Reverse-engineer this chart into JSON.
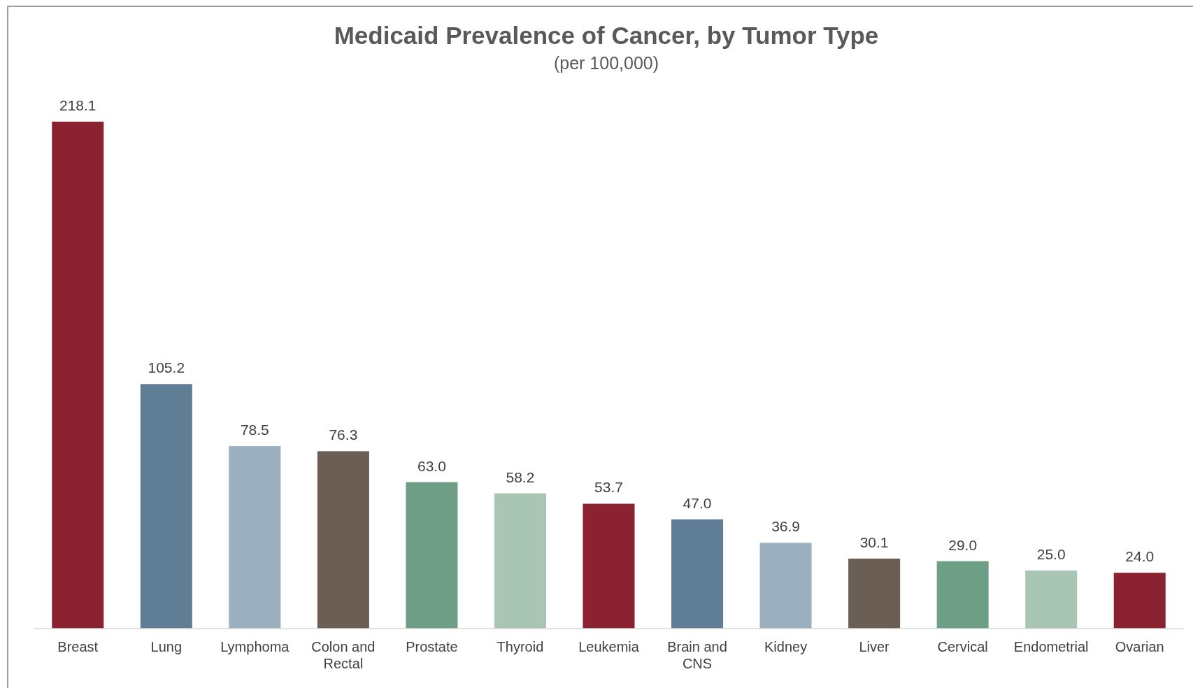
{
  "chart_data": {
    "type": "bar",
    "title": "Medicaid Prevalence of Cancer, by Tumor Type",
    "subtitle": "(per 100,000)",
    "categories": [
      "Breast",
      "Lung",
      "Lymphoma",
      "Colon and Rectal",
      "Prostate",
      "Thyroid",
      "Leukemia",
      "Brain and CNS",
      "Kidney",
      "Liver",
      "Cervical",
      "Endometrial",
      "Ovarian"
    ],
    "values": [
      218.1,
      105.2,
      78.5,
      76.3,
      63.0,
      58.2,
      53.7,
      47.0,
      36.9,
      30.1,
      29.0,
      25.0,
      24.0
    ],
    "value_labels": [
      "218.1",
      "105.2",
      "78.5",
      "76.3",
      "63.0",
      "58.2",
      "53.7",
      "47.0",
      "36.9",
      "30.1",
      "29.0",
      "25.0",
      "24.0"
    ],
    "colors": [
      "#8b2232",
      "#5f7e96",
      "#9cb1c0",
      "#6b5f55",
      "#6f9e86",
      "#a9c6b5",
      "#8b2232",
      "#5f7e96",
      "#9cb1c0",
      "#6b5f55",
      "#6f9e86",
      "#a9c6b5",
      "#8b2232"
    ]
  }
}
